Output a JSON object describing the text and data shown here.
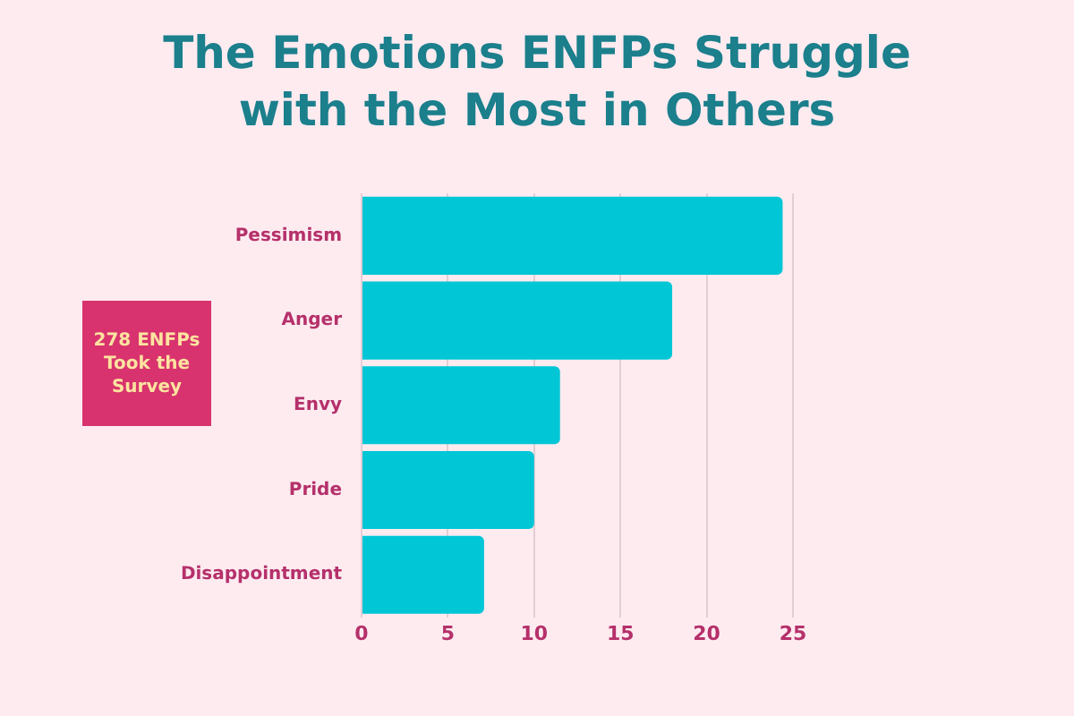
{
  "chart_data": {
    "type": "bar",
    "orientation": "horizontal",
    "title": "The Emotions ENFPs Struggle with the Most in Others",
    "categories": [
      "Pessimism",
      "Anger",
      "Envy",
      "Pride",
      "Disappointment"
    ],
    "values": [
      24.4,
      18.0,
      11.5,
      10.0,
      7.1
    ],
    "color": "#00c6d6",
    "xlim": [
      0,
      25
    ],
    "xticks": [
      0,
      5,
      10,
      15,
      20,
      25
    ],
    "grid": "x",
    "annotations": [
      "278 ENFPs Took the Survey"
    ]
  }
}
